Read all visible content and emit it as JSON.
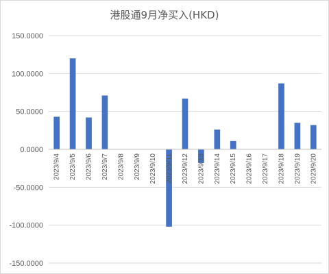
{
  "chart_data": {
    "type": "bar",
    "title": "港股通9月净买入(HKD)",
    "categories": [
      "2023/9/4",
      "2023/9/5",
      "2023/9/6",
      "2023/9/7",
      "2023/9/8",
      "2023/9/9",
      "2023/9/10",
      "2023/9/11",
      "2023/9/12",
      "2023/9/13",
      "2023/9/14",
      "2023/9/15",
      "2023/9/16",
      "2023/9/17",
      "2023/9/18",
      "2023/9/19",
      "2023/9/20"
    ],
    "values": [
      43,
      120,
      42,
      71,
      0,
      0,
      0,
      -102,
      67,
      -18,
      26,
      11,
      0,
      0,
      87,
      35,
      32
    ],
    "ylim": [
      -150,
      150
    ],
    "yticks": [
      150,
      100,
      50,
      0,
      -50,
      -100,
      -150
    ],
    "ytick_labels": [
      "150.0000",
      "100.0000",
      "50.0000",
      "0.0000",
      "-50.0000",
      "-100.0000",
      "-150.0000"
    ],
    "xlabel": "",
    "ylabel": "",
    "bar_color": "#4472c4",
    "grid": true,
    "legend": "none"
  }
}
